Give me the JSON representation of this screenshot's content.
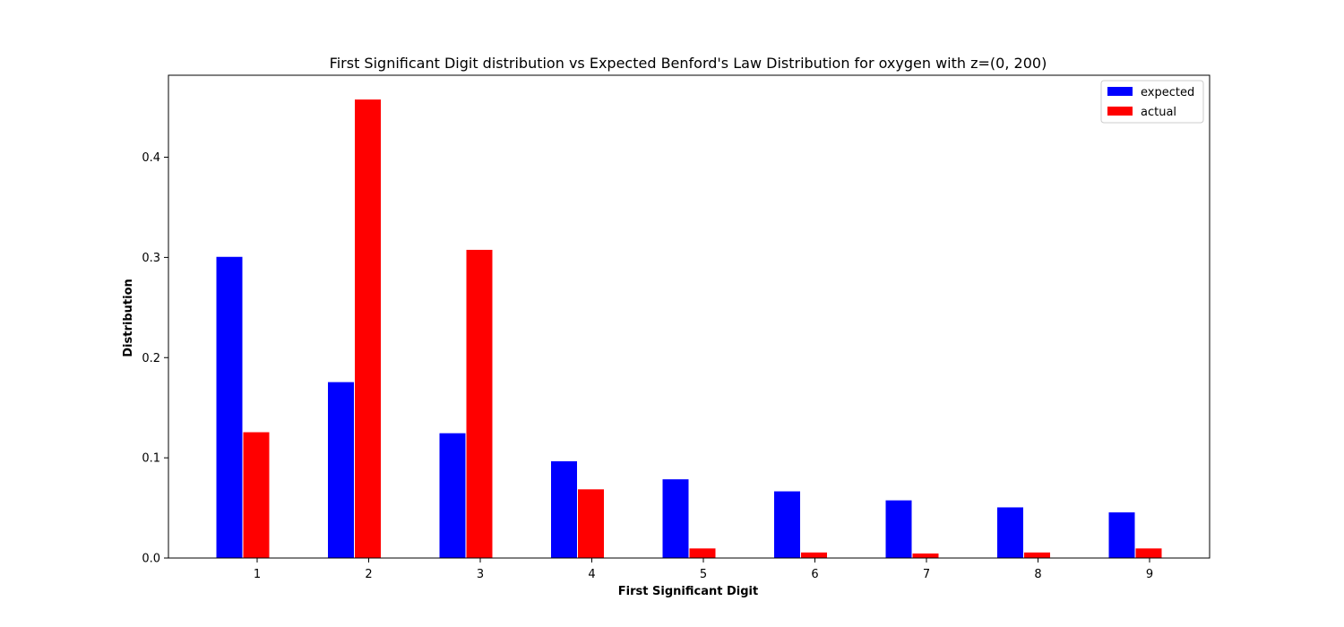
{
  "chart_data": {
    "type": "bar",
    "title": "First Significant Digit distribution vs Expected Benford's Law Distribution for oxygen with z=(0, 200)",
    "xlabel": "First Significant Digit",
    "ylabel": "Distribution",
    "categories": [
      "1",
      "2",
      "3",
      "4",
      "5",
      "6",
      "7",
      "8",
      "9"
    ],
    "series": [
      {
        "name": "expected",
        "color": "#0000ff",
        "values": [
          0.301,
          0.176,
          0.125,
          0.097,
          0.079,
          0.067,
          0.058,
          0.051,
          0.046
        ]
      },
      {
        "name": "actual",
        "color": "#ff0000",
        "values": [
          0.126,
          0.458,
          0.308,
          0.069,
          0.01,
          0.006,
          0.005,
          0.006,
          0.01
        ]
      }
    ],
    "ylim": [
      0,
      0.4818
    ],
    "yticks": [
      "0.0",
      "0.1",
      "0.2",
      "0.3",
      "0.4"
    ],
    "ytick_values": [
      0.0,
      0.1,
      0.2,
      0.3,
      0.4
    ],
    "grid": false,
    "legend_position": "top-right"
  }
}
